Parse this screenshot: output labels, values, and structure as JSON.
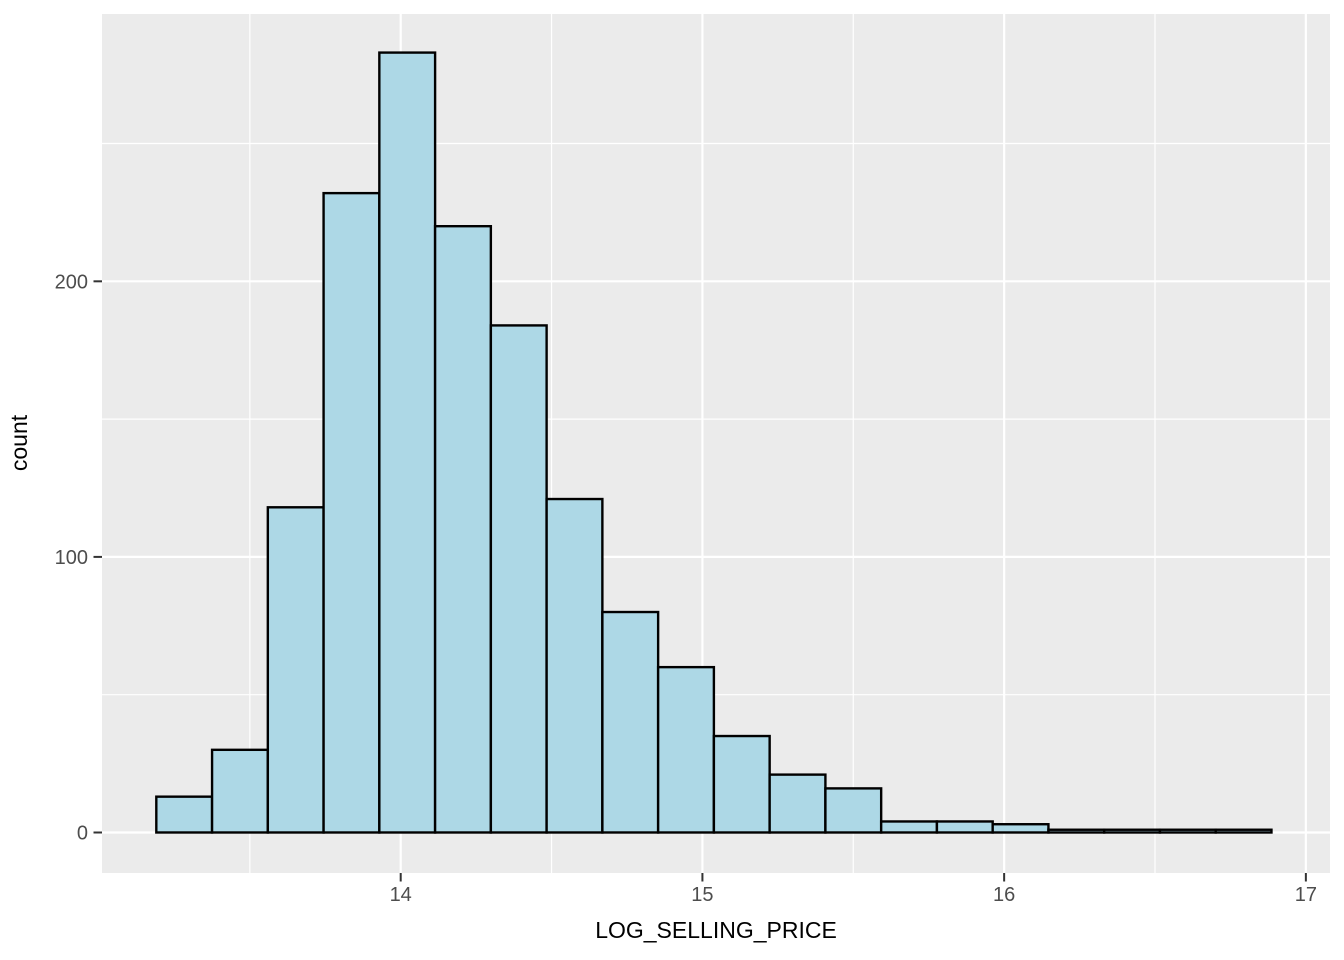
{
  "chart_data": {
    "type": "bar",
    "subtype": "histogram",
    "title": "",
    "xlabel": "LOG_SELLING_PRICE",
    "ylabel": "count",
    "bin_start": 13.19,
    "bin_width": 0.1848,
    "counts": [
      13,
      30,
      118,
      232,
      283,
      220,
      184,
      121,
      80,
      60,
      35,
      21,
      16,
      4,
      4,
      3,
      1,
      1,
      1,
      1
    ],
    "x_ticks": [
      14,
      15,
      16,
      17
    ],
    "y_ticks": [
      0,
      100,
      200
    ],
    "x_minor_ticks": [
      13.5,
      14.5,
      15.5,
      16.5
    ],
    "y_minor_ticks": [
      50,
      150,
      250
    ],
    "x_domain": [
      13.01,
      17.08
    ],
    "y_domain": [
      -14.7,
      297
    ],
    "grid": true,
    "legend_position": "none",
    "colors": {
      "panel_background": "#EBEBEB",
      "outer_background": "#FFFFFF",
      "bar_fill": "#ADD8E6",
      "bar_stroke": "#000000",
      "gridline": "#FFFFFF",
      "tick_mark": "#333333",
      "tick_label": "#4D4D4D",
      "axis_title": "#000000"
    }
  }
}
